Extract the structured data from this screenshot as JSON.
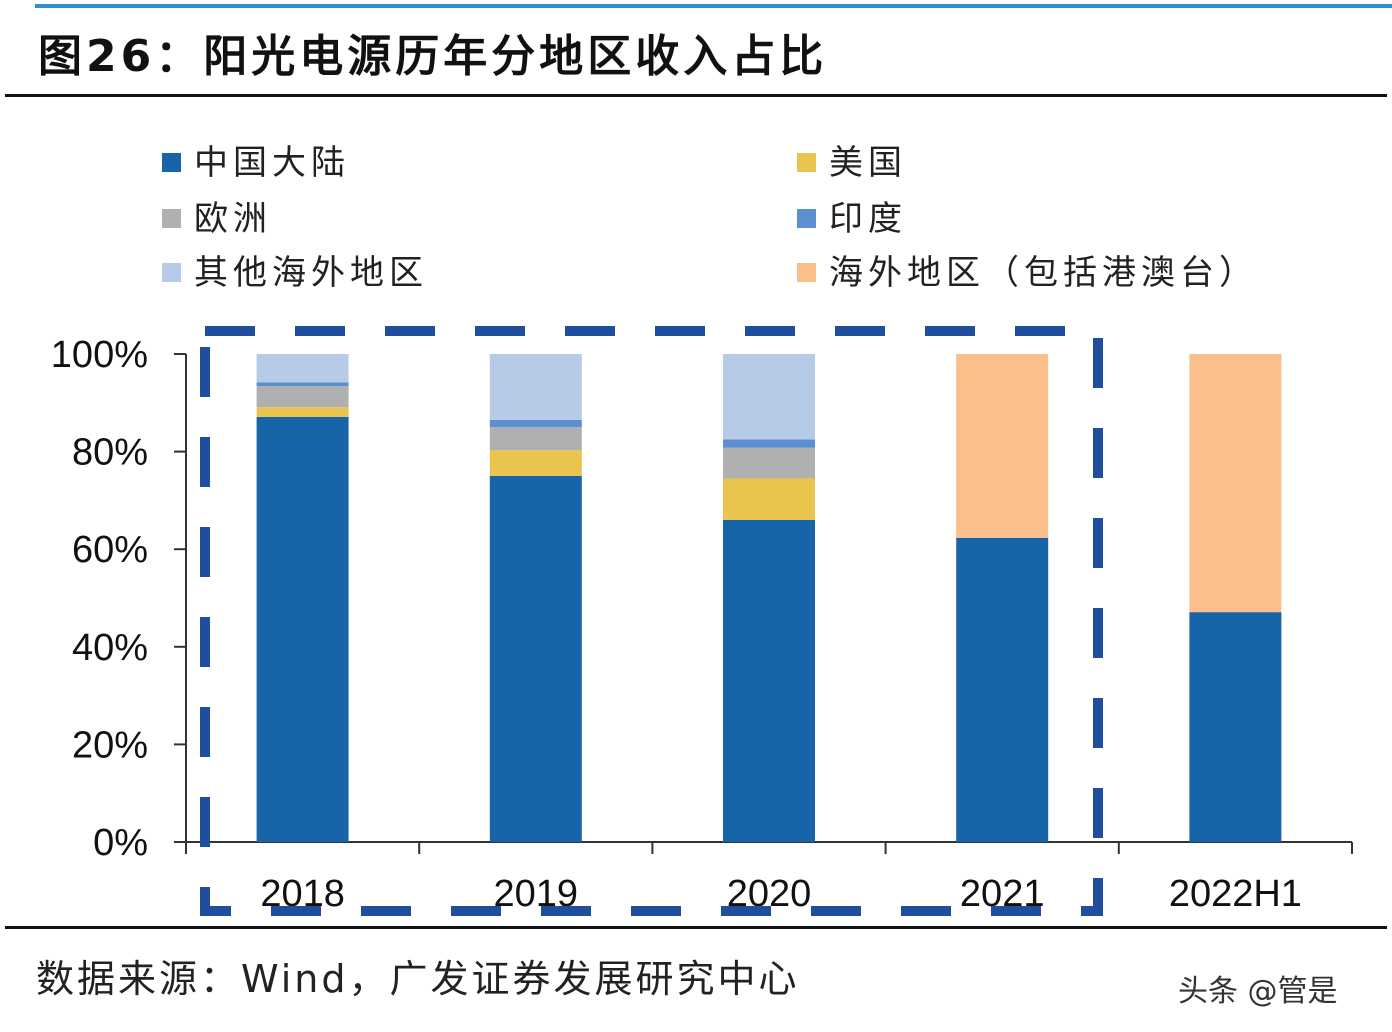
{
  "title": "图26：阳光电源历年分地区收入占比",
  "source": "数据来源：Wind，广发证券发展研究中心",
  "watermark": "头条 @管是",
  "chart_data": {
    "type": "bar",
    "stacked": true,
    "categories": [
      "2018",
      "2019",
      "2020",
      "2021",
      "2022H1"
    ],
    "ylim": [
      0,
      100
    ],
    "yticks": [
      "0%",
      "20%",
      "40%",
      "60%",
      "80%",
      "100%"
    ],
    "legend_placement": "top",
    "series": [
      {
        "name": "中国大陆",
        "color": "#1764a8",
        "values": [
          87.1,
          75.0,
          66.0,
          62.3,
          47.1
        ]
      },
      {
        "name": "美国",
        "color": "#e9c550",
        "values": [
          2.0,
          5.3,
          8.5,
          0,
          0
        ]
      },
      {
        "name": "欧洲",
        "color": "#b0b0b0",
        "values": [
          4.3,
          4.7,
          6.3,
          0,
          0
        ]
      },
      {
        "name": "印度",
        "color": "#5b8fce",
        "values": [
          0.8,
          1.5,
          1.7,
          0,
          0
        ]
      },
      {
        "name": "其他海外地区",
        "color": "#b6cbe8",
        "values": [
          5.8,
          13.5,
          17.5,
          0,
          0
        ]
      },
      {
        "name": "海外地区（包括港澳台）",
        "color": "#fbbf8c",
        "values": [
          0,
          0,
          0,
          37.7,
          52.9
        ]
      }
    ],
    "highlight_box": {
      "categories": [
        "2018",
        "2019",
        "2020",
        "2021"
      ],
      "style": "dashed",
      "color": "#1f4e9e"
    }
  }
}
